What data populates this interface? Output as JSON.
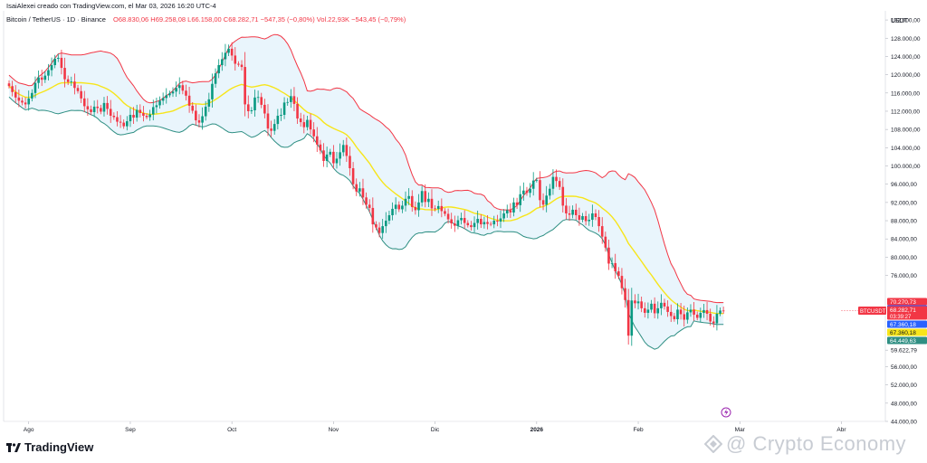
{
  "header": {
    "author_line": "IsaiAlexei creado con TradingView.com, el Mar 03, 2026 16:20 UTC-4",
    "symbol": "Bitcoin / TetherUS · 1D · Binance",
    "ohlc": "O68.830,06 H69.258,08 L66.158,00 C68.282,71 −547,35 (−0,80%) Vol.22,93K −543,45 (−0,79%)"
  },
  "axis": {
    "currency": "USDT",
    "price_ticks": [
      "132.000,00",
      "128.000,00",
      "124.000,00",
      "120.000,00",
      "116.000,00",
      "112.000,00",
      "108.000,00",
      "104.000,00",
      "100.000,00",
      "96.000,00",
      "92.000,00",
      "88.000,00",
      "84.000,00",
      "80.000,00",
      "76.000,00",
      "59.622,79",
      "56.000,00",
      "52.000,00",
      "48.000,00",
      "44.000,00"
    ],
    "time_ticks": [
      "Ago",
      "Sep",
      "Oct",
      "Nov",
      "Dic",
      "2026",
      "Feb",
      "Mar",
      "Abr"
    ]
  },
  "price_labels": {
    "upper": "70.270,73",
    "last": "68.282,71",
    "symbol_tag": "BTCUSDT",
    "close": "68.282,71",
    "countdown": "03:39:27",
    "lower_blue": "67.360,18",
    "middle": "67.360,18",
    "lower_band": "64.449,63"
  },
  "colors": {
    "up": "#089981",
    "down": "#f23645",
    "upper_band": "#f23645",
    "lower_band": "#2f8f83",
    "middle_band": "#f7e51a",
    "band_fill": "#e3f2fb",
    "last_price_line": "#f23645"
  },
  "footer": {
    "brand": "TradingView",
    "watermark": "@ Crypto Economy"
  },
  "chart_data": {
    "type": "candlestick",
    "symbol": "BTCUSDT",
    "interval": "1D",
    "ylim": [
      44000,
      134000
    ],
    "last_close": 68282.71,
    "last_close_start_bar": 254,
    "start_month_label": "Ago",
    "start_bar": 6,
    "bars_per_month": 31,
    "closes": [
      117500,
      116200,
      115000,
      114300,
      113900,
      113500,
      114800,
      116000,
      118200,
      119400,
      118900,
      119800,
      121000,
      122100,
      123500,
      123700,
      121500,
      119000,
      118400,
      118500,
      117100,
      116400,
      114800,
      113100,
      112400,
      111800,
      113000,
      112700,
      111900,
      113800,
      112500,
      111000,
      110700,
      109700,
      109500,
      108700,
      109800,
      111200,
      110600,
      112300,
      111600,
      111000,
      110700,
      111300,
      112900,
      113300,
      114300,
      114900,
      115500,
      115900,
      116300,
      117100,
      117700,
      116500,
      115400,
      113200,
      112100,
      110000,
      109500,
      110900,
      113000,
      114600,
      118000,
      120300,
      122100,
      123400,
      124800,
      125700,
      124200,
      122400,
      122200,
      121700,
      113500,
      112000,
      112200,
      115000,
      115100,
      113400,
      111500,
      108200,
      107700,
      109200,
      111000,
      111200,
      113900,
      114000,
      115300,
      113600,
      110400,
      109600,
      108500,
      110100,
      108000,
      106500,
      104700,
      103400,
      101100,
      102500,
      103100,
      100600,
      101600,
      103000,
      104600,
      102200,
      99500,
      96000,
      94400,
      95100,
      93100,
      91500,
      90800,
      87200,
      86500,
      85300,
      86800,
      88000,
      89200,
      90600,
      91500,
      90500,
      91300,
      92800,
      93400,
      91000,
      90300,
      92000,
      94500,
      92100,
      92800,
      90700,
      90600,
      91200,
      90100,
      89500,
      88300,
      87400,
      86900,
      88100,
      88600,
      87500,
      87000,
      86600,
      87500,
      88400,
      87200,
      87700,
      87300,
      87200,
      88000,
      87800,
      88500,
      89600,
      90300,
      89800,
      92000,
      91400,
      93800,
      94600,
      94100,
      95000,
      96800,
      96900,
      92500,
      91500,
      93500,
      95000,
      97600,
      96700,
      95400,
      91300,
      89600,
      89300,
      90400,
      89200,
      88200,
      89000,
      87900,
      88200,
      89600,
      88800,
      86800,
      84500,
      82100,
      78600,
      78700,
      76900,
      75900,
      73200,
      70600,
      62800,
      70500,
      69900,
      70300,
      68800,
      67800,
      68500,
      69800,
      67700,
      68800,
      70000,
      69200,
      68000,
      67100,
      66400,
      68500,
      67500,
      66300,
      67900,
      68500,
      67400,
      66700,
      67800,
      68400,
      67600,
      65900,
      65500,
      67600,
      68300,
      68282
    ]
  }
}
